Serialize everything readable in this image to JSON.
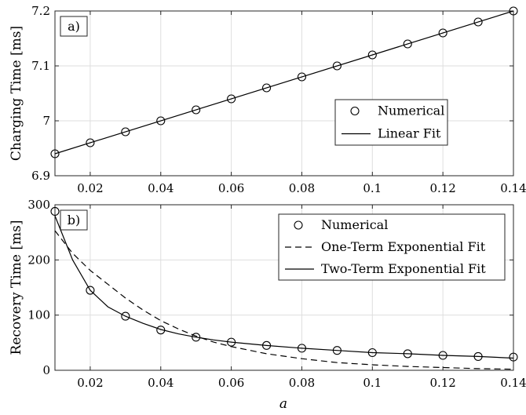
{
  "chart_data": [
    {
      "type": "line",
      "panel_label": "a)",
      "ylabel": "Charging Time [ms]",
      "xlim": [
        0.01,
        0.14
      ],
      "ylim": [
        6.9,
        7.2
      ],
      "xticks": [
        0.02,
        0.04,
        0.06,
        0.08,
        0.1,
        0.12,
        0.14
      ],
      "xtick_labels": [
        "0.02",
        "0.04",
        "0.06",
        "0.08",
        "0.1",
        "0.12",
        "0.14"
      ],
      "yticks": [
        6.9,
        7.0,
        7.1,
        7.2
      ],
      "ytick_labels": [
        "6.9",
        "7",
        "7.1",
        "7.2"
      ],
      "grid": true,
      "legend": "center-right",
      "series": [
        {
          "name": "Numerical",
          "style": "circles",
          "x": [
            0.01,
            0.02,
            0.03,
            0.04,
            0.05,
            0.06,
            0.07,
            0.08,
            0.09,
            0.1,
            0.11,
            0.12,
            0.13,
            0.14
          ],
          "y": [
            6.94,
            6.96,
            6.98,
            7.0,
            7.02,
            7.04,
            7.06,
            7.08,
            7.1,
            7.12,
            7.14,
            7.16,
            7.18,
            7.2
          ]
        },
        {
          "name": "Linear Fit",
          "style": "solid",
          "x": [
            0.01,
            0.14
          ],
          "y": [
            6.94,
            7.2
          ]
        }
      ]
    },
    {
      "type": "line",
      "panel_label": "b)",
      "ylabel": "Recovery Time [ms]",
      "xlabel": "a",
      "xlim": [
        0.01,
        0.14
      ],
      "ylim": [
        0,
        300
      ],
      "xticks": [
        0.02,
        0.04,
        0.06,
        0.08,
        0.1,
        0.12,
        0.14
      ],
      "xtick_labels": [
        "0.02",
        "0.04",
        "0.06",
        "0.08",
        "0.1",
        "0.12",
        "0.14"
      ],
      "yticks": [
        0,
        100,
        200,
        300
      ],
      "ytick_labels": [
        "0",
        "100",
        "200",
        "300"
      ],
      "grid": true,
      "legend": "top-right",
      "series": [
        {
          "name": "Numerical",
          "style": "circles",
          "x": [
            0.01,
            0.02,
            0.03,
            0.04,
            0.05,
            0.06,
            0.07,
            0.08,
            0.09,
            0.1,
            0.11,
            0.12,
            0.13,
            0.14
          ],
          "y": [
            288,
            145,
            98,
            73,
            60,
            51,
            45,
            40,
            36,
            32,
            30,
            27,
            25,
            24
          ]
        },
        {
          "name": "One-Term Exponential Fit",
          "style": "dashed",
          "x": [
            0.01,
            0.015,
            0.02,
            0.025,
            0.03,
            0.035,
            0.04,
            0.045,
            0.05,
            0.055,
            0.06,
            0.07,
            0.08,
            0.09,
            0.1,
            0.11,
            0.12,
            0.13,
            0.14
          ],
          "y": [
            253,
            212,
            181,
            156,
            131,
            109,
            90,
            75,
            62,
            51,
            43,
            30,
            21,
            14,
            10,
            7,
            5,
            3,
            2
          ]
        },
        {
          "name": "Two-Term Exponential Fit",
          "style": "solid",
          "x": [
            0.01,
            0.015,
            0.02,
            0.025,
            0.03,
            0.035,
            0.04,
            0.045,
            0.05,
            0.055,
            0.06,
            0.07,
            0.08,
            0.09,
            0.1,
            0.11,
            0.12,
            0.13,
            0.14
          ],
          "y": [
            280,
            200,
            145,
            115,
            98,
            85,
            74,
            66,
            60,
            55,
            51,
            45,
            40,
            36,
            32,
            30,
            27,
            25,
            22
          ]
        }
      ]
    }
  ]
}
